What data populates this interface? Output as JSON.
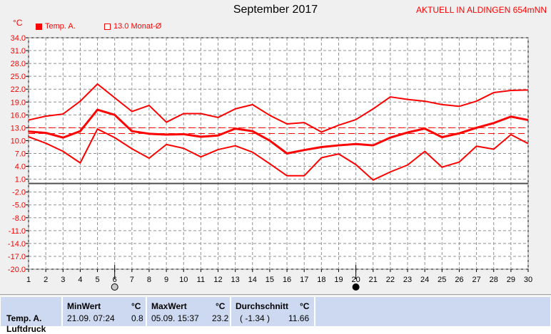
{
  "title": "September 2017",
  "location": "AKTUELL IN ALDINGEN 654mNN",
  "unit": "°C",
  "legend": {
    "series1": "Temp. A.",
    "series2": "13.0 Monat-Ø"
  },
  "colors": {
    "line": "#ff0000",
    "grid": "#808080",
    "zero": "#505050"
  },
  "chart_data": {
    "type": "line",
    "title": "September 2017",
    "ylabel": "°C",
    "x": [
      1,
      2,
      3,
      4,
      5,
      6,
      7,
      8,
      9,
      10,
      11,
      12,
      13,
      14,
      15,
      16,
      17,
      18,
      19,
      20,
      21,
      22,
      23,
      24,
      25,
      26,
      27,
      28,
      29,
      30
    ],
    "xlim": [
      1,
      30
    ],
    "ylim": [
      -20,
      34
    ],
    "yticks": [
      34.0,
      31.0,
      28.0,
      25.0,
      22.0,
      19.0,
      16.0,
      13.0,
      10.0,
      7.0,
      4.0,
      1.0,
      -2.0,
      -5.0,
      -8.0,
      -11.0,
      -14.0,
      -17.0,
      -20.0
    ],
    "ytick_labels": [
      "34.0",
      "31.0",
      "28.0",
      "25.0",
      "22.0",
      "19.0",
      "16.0",
      "13.0",
      "10.0",
      "7.0",
      "4.0",
      "1.0",
      "-2.0",
      "-5.0",
      "-8.0",
      "-11.0",
      "-14.0",
      "-17.0",
      "-20.0"
    ],
    "grid": true,
    "series": [
      {
        "name": "Temp. A.",
        "role": "max",
        "values": [
          14.8,
          15.7,
          16.2,
          19.2,
          23.2,
          20.0,
          16.8,
          18.2,
          14.3,
          16.3,
          16.3,
          15.4,
          17.4,
          18.4,
          15.9,
          13.9,
          14.2,
          12.0,
          13.6,
          14.9,
          17.4,
          20.2,
          19.6,
          19.2,
          18.4,
          18.0,
          19.2,
          21.2,
          21.7,
          21.8
        ]
      },
      {
        "name": "Temp. A.",
        "role": "mean",
        "values": [
          12.1,
          11.8,
          10.7,
          12.2,
          17.2,
          16.0,
          12.2,
          11.6,
          11.4,
          11.5,
          10.9,
          11.2,
          12.8,
          12.2,
          10.0,
          7.0,
          7.8,
          8.5,
          8.9,
          9.2,
          8.9,
          10.7,
          11.9,
          12.8,
          10.8,
          11.7,
          13.0,
          14.1,
          15.6,
          14.8
        ]
      },
      {
        "name": "Temp. A.",
        "role": "min",
        "values": [
          10.9,
          9.4,
          7.5,
          4.8,
          12.7,
          10.7,
          8.1,
          5.9,
          9.1,
          8.2,
          6.2,
          7.9,
          8.8,
          7.3,
          4.6,
          1.8,
          1.8,
          6.0,
          6.9,
          4.4,
          0.8,
          2.7,
          4.3,
          7.5,
          3.8,
          5.0,
          8.7,
          8.0,
          11.4,
          9.3
        ]
      }
    ],
    "reference_lines": [
      {
        "label": "13.0 Monat-Ø",
        "value": 13.0
      },
      {
        "value": 11.66
      }
    ],
    "markers": [
      {
        "x": 6,
        "symbol": "open-circle"
      },
      {
        "x": 20,
        "symbol": "filled-circle"
      }
    ]
  },
  "stats": {
    "row_label": "Temp. A.",
    "row_label2": "Luftdruck",
    "min_header": "MinWert",
    "min_unit": "°C",
    "min_time": "21.09.  07:24",
    "min_value": "0.8",
    "max_header": "MaxWert",
    "max_unit": "°C",
    "max_time": "05.09.  15:37",
    "max_value": "23.2",
    "avg_header": "Durchschnitt",
    "avg_unit": "°C",
    "avg_dev": "( -1.34 )",
    "avg_value": "11.66"
  }
}
